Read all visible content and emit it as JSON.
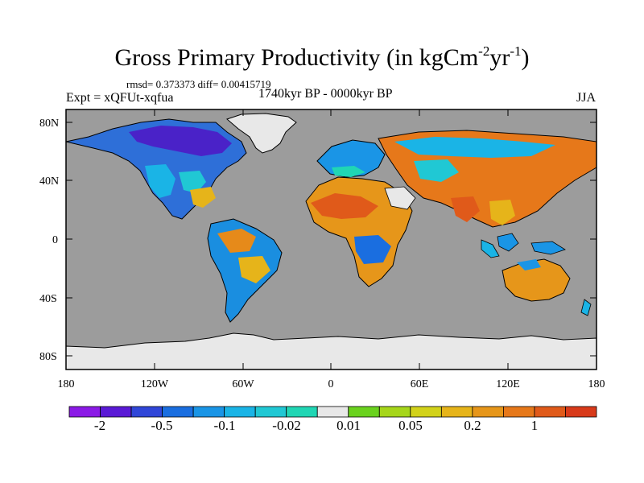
{
  "title": {
    "main": "Gross Primary Productivity (in kgCm",
    "exp1": "-2",
    "mid": "yr",
    "exp2": "-1",
    "end": ")"
  },
  "stats": "rmsd= 0.373373 diff= 0.00415719",
  "left_label": "Expt = xQFUt-xqfua",
  "center_label": "1740kyr BP - 0000kyr BP",
  "right_label": "JJA",
  "axes": {
    "y_ticks": [
      "80N",
      "40N",
      "0",
      "40S",
      "80S"
    ],
    "x_ticks": [
      "180",
      "120W",
      "60W",
      "0",
      "60E",
      "120E",
      "180"
    ]
  },
  "colorbar": {
    "colors": [
      "#8b1ae6",
      "#5a1ad6",
      "#3046d8",
      "#1a6ee0",
      "#1a95e6",
      "#1ab4e6",
      "#20c8d4",
      "#20d6b4",
      "#e8e8e8",
      "#6ad21e",
      "#a6d61a",
      "#d2d21a",
      "#e6b41a",
      "#e6961a",
      "#e6781a",
      "#e05a1a",
      "#d83a1a"
    ],
    "labels": [
      "-2",
      "-0.5",
      "-0.1",
      "-0.02",
      "0.01",
      "0.05",
      "0.2",
      "1"
    ]
  },
  "colors": {
    "ocean": "#9c9c9c",
    "no_data_land": "#e8e8e8",
    "coastline": "#000000"
  }
}
